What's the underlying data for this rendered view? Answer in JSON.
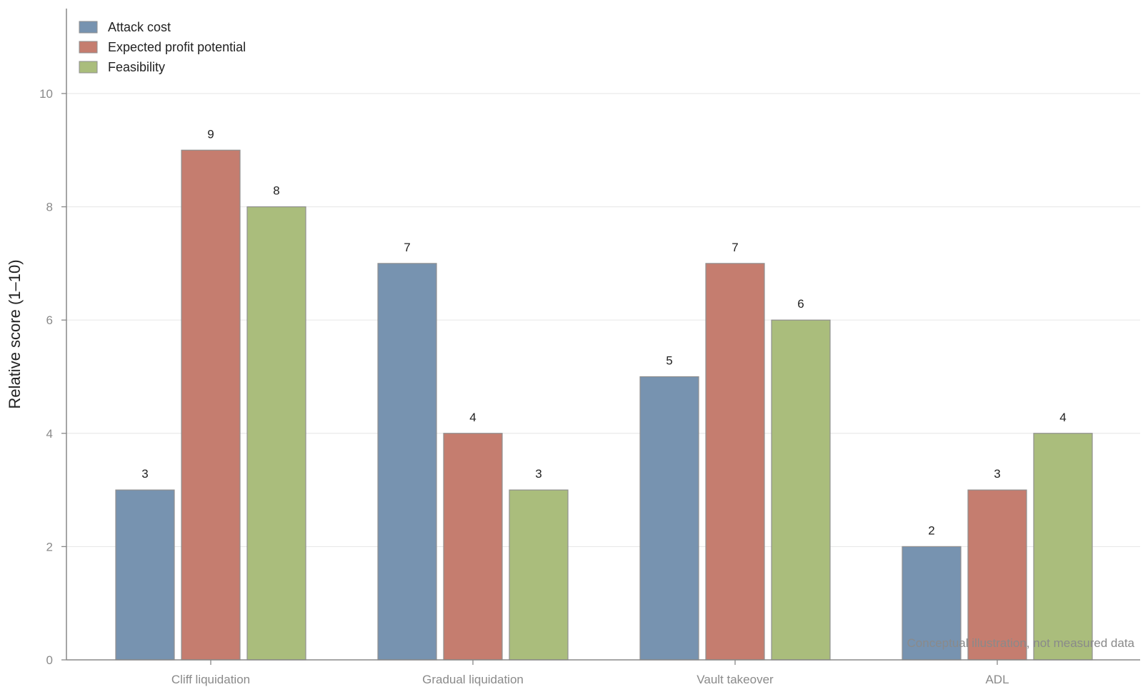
{
  "chart_data": {
    "type": "bar",
    "categories": [
      "Cliff liquidation",
      "Gradual liquidation",
      "Vault takeover",
      "ADL"
    ],
    "series": [
      {
        "name": "Attack cost",
        "values": [
          3,
          7,
          5,
          2
        ],
        "color": "#7793b0"
      },
      {
        "name": "Expected profit potential",
        "values": [
          9,
          4,
          7,
          3
        ],
        "color": "#c57d6f"
      },
      {
        "name": "Feasibility",
        "values": [
          8,
          3,
          6,
          4
        ],
        "color": "#aabd7c"
      }
    ],
    "ylabel": "Relative score (1–10)",
    "ylim": [
      0,
      11.5
    ],
    "yticks": [
      0,
      2,
      4,
      6,
      8,
      10
    ],
    "grid": "horizontal",
    "legend": "top-left",
    "annotation": "Conceptual illustration, not measured data"
  }
}
